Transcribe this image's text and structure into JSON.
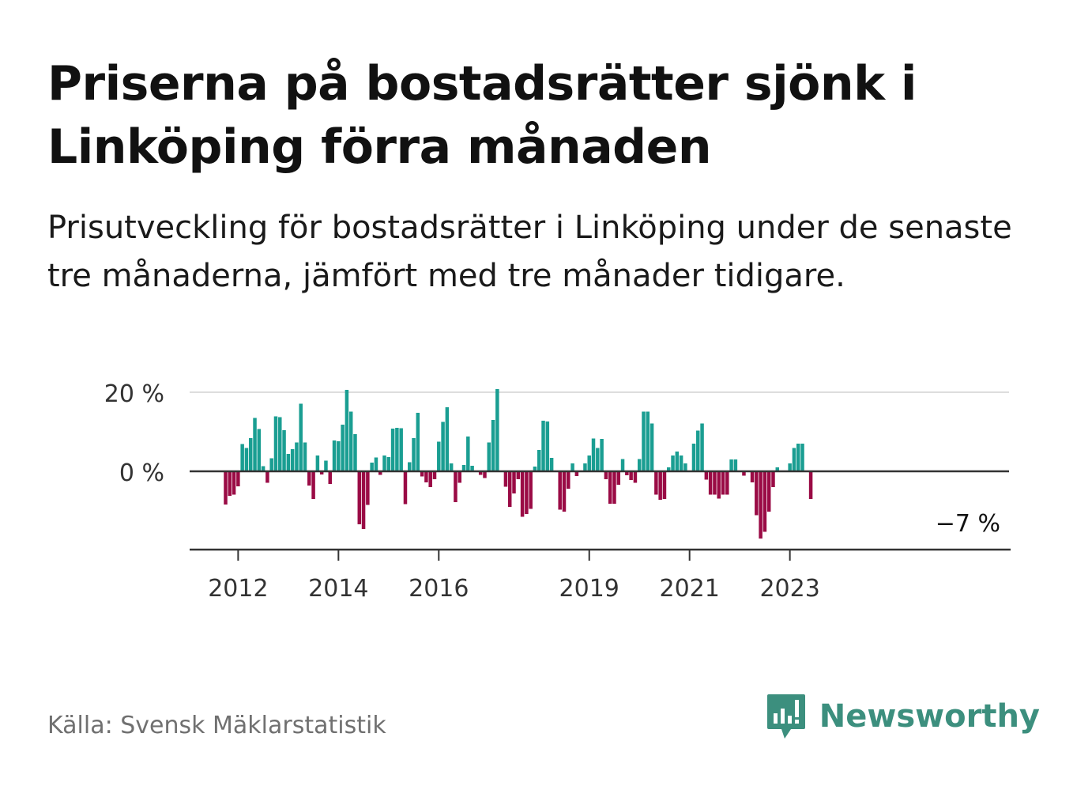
{
  "header": {
    "title": "Priserna på bostadsrätter sjönk i Linköping förra månaden",
    "subtitle": "Prisutveckling för bostadsrätter i Linköping under de senaste tre månaderna, jämfört med tre månader tidigare."
  },
  "footer": {
    "source": "Källa: Svensk Mäklarstatistik",
    "brand_name": "Newsworthy"
  },
  "colors": {
    "positive": "#1a9e92",
    "negative": "#9a0b45",
    "brand": "#3c8f7e",
    "grid": "#dddddd",
    "axis": "#333333"
  },
  "chart_data": {
    "type": "bar",
    "title": "",
    "xlabel": "",
    "ylabel": "",
    "ylim": [
      -19,
      20
    ],
    "y_ticks": [
      {
        "value": 20,
        "label": "20 %"
      },
      {
        "value": 0,
        "label": "0 %"
      }
    ],
    "x_ticks": [
      {
        "index": 3,
        "label": "2012"
      },
      {
        "index": 27,
        "label": "2014"
      },
      {
        "index": 51,
        "label": "2016"
      },
      {
        "index": 87,
        "label": "2019"
      },
      {
        "index": 111,
        "label": "2021"
      },
      {
        "index": 135,
        "label": "2023"
      }
    ],
    "last_value_label": "−7 %",
    "series": [
      {
        "values": [
          -8.4,
          -6.2,
          -5.9,
          -3.8,
          6.9,
          5.9,
          8.4,
          13.5,
          10.7,
          1.3,
          -2.9,
          3.3,
          13.9,
          13.7,
          10.4,
          4.4,
          5.6,
          7.3,
          17.1,
          7.3,
          -3.6,
          -7.0,
          4.0,
          -0.8,
          2.7,
          -3.2,
          7.8,
          7.6,
          11.8,
          20.6,
          15.1,
          9.4,
          -13.4,
          -14.6,
          -8.5,
          2.2,
          3.5,
          -0.9,
          4.0,
          3.6,
          10.8,
          11.0,
          10.9,
          -8.3,
          2.3,
          8.4,
          14.8,
          -1.3,
          -2.8,
          -4.0,
          -2.0,
          7.5,
          12.5,
          16.2,
          2.0,
          -7.8,
          -2.9,
          1.6,
          8.8,
          1.4,
          0.0,
          -0.9,
          -1.7,
          7.3,
          13.0,
          20.8,
          0.0,
          -3.9,
          -9.0,
          -5.6,
          -2.0,
          -11.5,
          -10.8,
          -9.5,
          1.2,
          5.4,
          12.8,
          12.6,
          3.4,
          0.0,
          -9.7,
          -10.2,
          -4.4,
          2.0,
          -1.2,
          0.0,
          2.0,
          4.0,
          8.3,
          5.9,
          8.2,
          -2.0,
          -8.2,
          -8.2,
          -3.4,
          3.1,
          -1.0,
          -2.2,
          -2.9,
          3.1,
          15.1,
          15.1,
          12.1,
          -5.9,
          -7.2,
          -7.0,
          1.0,
          4.0,
          5.0,
          4.0,
          2.0,
          0.0,
          7.0,
          10.3,
          12.1,
          -2.1,
          -5.9,
          -5.9,
          -6.9,
          -5.9,
          -5.9,
          3.0,
          3.0,
          0.0,
          -1.1,
          0.0,
          -2.8,
          -11.1,
          -17.0,
          -15.3,
          -10.2,
          -4.0,
          1.0,
          0.0,
          0.0,
          2.0,
          5.9,
          7.0,
          7.0,
          0.0,
          -7.0
        ]
      }
    ]
  }
}
